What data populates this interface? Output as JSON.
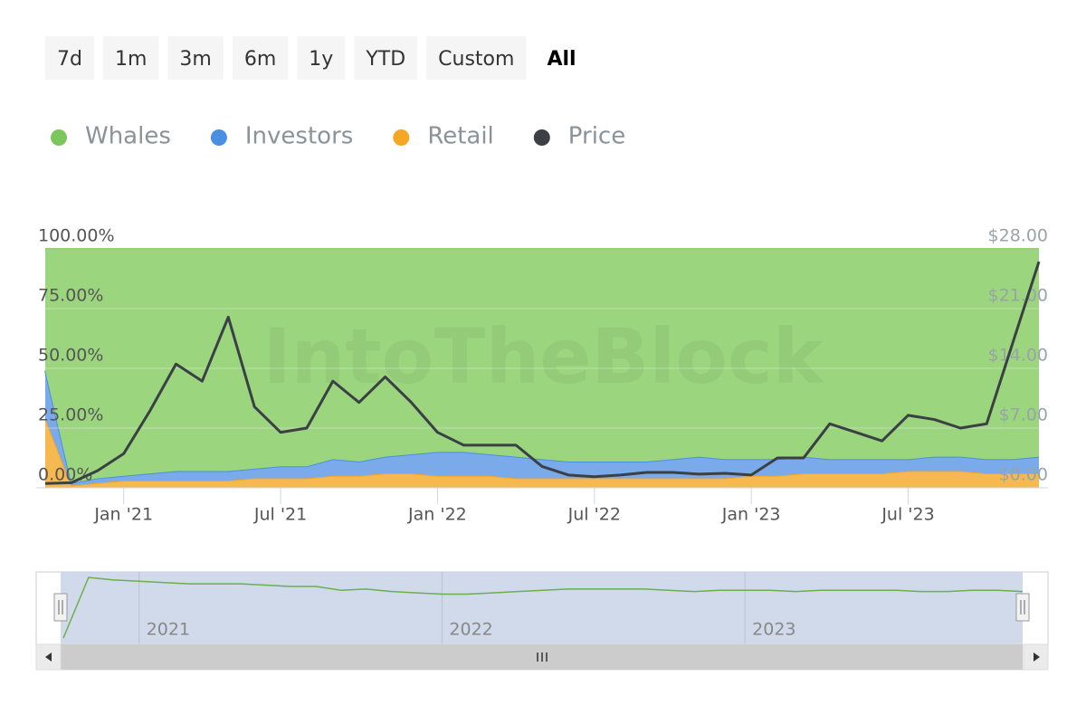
{
  "chart_data": {
    "type": "area",
    "range_buttons": [
      "7d",
      "1m",
      "3m",
      "6m",
      "1y",
      "YTD",
      "Custom",
      "All"
    ],
    "selected_button": 7,
    "watermark": "IntoTheBlock",
    "stacking": "percent",
    "x": [
      "2020-10",
      "2020-11",
      "2020-12",
      "2021-01",
      "2021-02",
      "2021-03",
      "2021-04",
      "2021-05",
      "2021-06",
      "2021-07",
      "2021-08",
      "2021-09",
      "2021-10",
      "2021-11",
      "2021-12",
      "2022-01",
      "2022-02",
      "2022-03",
      "2022-04",
      "2022-05",
      "2022-06",
      "2022-07",
      "2022-08",
      "2022-09",
      "2022-10",
      "2022-11",
      "2022-12",
      "2023-01",
      "2023-02",
      "2023-03",
      "2023-04",
      "2023-05",
      "2023-06",
      "2023-07",
      "2023-08",
      "2023-09",
      "2023-10",
      "2023-11",
      "2023-12"
    ],
    "xlim": [
      "2020-10",
      "2023-12"
    ],
    "xticks": [
      {
        "value": "2021-01",
        "label": "Jan '21"
      },
      {
        "value": "2021-07",
        "label": "Jul '21"
      },
      {
        "value": "2022-01",
        "label": "Jan '22"
      },
      {
        "value": "2022-07",
        "label": "Jul '22"
      },
      {
        "value": "2023-01",
        "label": "Jan '23"
      },
      {
        "value": "2023-07",
        "label": "Jul '23"
      }
    ],
    "ylim": [
      0,
      100
    ],
    "yticks": [
      {
        "value": 0,
        "label": "0.00%"
      },
      {
        "value": 25,
        "label": "25.00%"
      },
      {
        "value": 50,
        "label": "50.00%"
      },
      {
        "value": 75,
        "label": "75.00%"
      },
      {
        "value": 100,
        "label": "100.00%"
      }
    ],
    "y2lim": [
      0,
      28
    ],
    "y2ticks": [
      {
        "value": 0,
        "label": "$0.00"
      },
      {
        "value": 7,
        "label": "$7.00"
      },
      {
        "value": 14,
        "label": "$14.00"
      },
      {
        "value": 21,
        "label": "$21.00"
      },
      {
        "value": 28,
        "label": "$28.00"
      }
    ],
    "series": [
      {
        "name": "Whales",
        "color": "#7cc75b",
        "values": [
          51,
          98,
          96,
          95,
          94,
          93,
          93,
          93,
          92,
          91,
          91,
          88,
          89,
          87,
          86,
          85,
          85,
          86,
          87,
          88,
          89,
          89,
          89,
          89,
          88,
          87,
          88,
          88,
          88,
          87,
          88,
          88,
          88,
          88,
          87,
          87,
          88,
          88,
          87
        ]
      },
      {
        "name": "Investors",
        "color": "#4a90e2",
        "values": [
          20,
          1,
          2,
          2,
          3,
          4,
          4,
          4,
          4,
          5,
          5,
          7,
          6,
          7,
          8,
          10,
          10,
          9,
          9,
          8,
          7,
          7,
          7,
          7,
          8,
          9,
          8,
          7,
          7,
          7,
          6,
          6,
          6,
          5,
          6,
          6,
          6,
          6,
          7
        ]
      },
      {
        "name": "Retail",
        "color": "#f5a623",
        "values": [
          29,
          1,
          2,
          3,
          3,
          3,
          3,
          3,
          4,
          4,
          4,
          5,
          5,
          6,
          6,
          5,
          5,
          5,
          4,
          4,
          4,
          4,
          4,
          4,
          4,
          4,
          4,
          5,
          5,
          6,
          6,
          6,
          6,
          7,
          7,
          7,
          6,
          6,
          6
        ]
      },
      {
        "name": "Price",
        "color": "#3b4045",
        "axis": "y2",
        "type": "line",
        "values": [
          0.5,
          0.6,
          2,
          4,
          9,
          14.5,
          12.5,
          20,
          9.5,
          6.5,
          7,
          12.5,
          10,
          13,
          10,
          6.5,
          5,
          5,
          5,
          2.5,
          1.5,
          1.3,
          1.5,
          1.8,
          1.8,
          1.6,
          1.7,
          1.5,
          3.5,
          3.5,
          7.5,
          6.5,
          5.5,
          8.5,
          8,
          7,
          7.5,
          17,
          26.5
        ]
      }
    ],
    "navigator": {
      "series": 0,
      "xticks": [
        {
          "value": "2021-01",
          "label": "2021"
        },
        {
          "value": "2022-01",
          "label": "2022"
        },
        {
          "value": "2023-01",
          "label": "2023"
        }
      ]
    }
  }
}
